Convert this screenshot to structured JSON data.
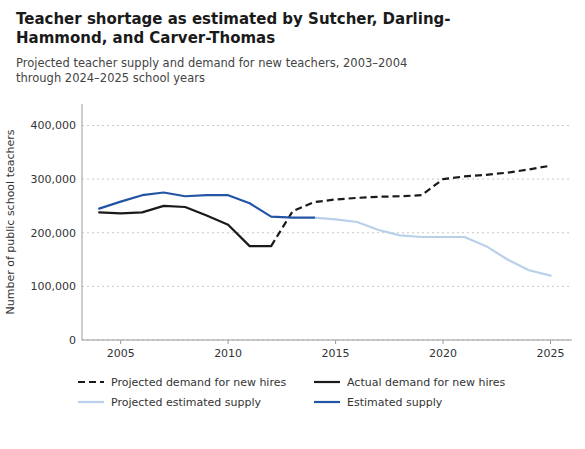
{
  "chart_data": {
    "type": "line",
    "title": "Teacher shortage as estimated by Sutcher, Darling-\nHammond, and Carver-Thomas",
    "subtitle": "Projected teacher supply and demand for new teachers, 2003–2004\nthrough 2024–2025 school years",
    "y_label": "Number of public school teachers",
    "xlim": [
      2003.2,
      2026.0
    ],
    "xticks": [
      2005,
      2010,
      2015,
      2020,
      2025
    ],
    "ylim": [
      0,
      440000
    ],
    "yticks": [
      0,
      {
        "value": 100000,
        "label": "100,000"
      },
      {
        "value": 200000,
        "label": "200,000"
      },
      {
        "value": 300000,
        "label": "300,000"
      },
      {
        "value": 400000,
        "label": "400,000"
      }
    ],
    "grid": true,
    "legend": "bottom",
    "series": [
      {
        "name": "Projected demand for new hires",
        "color": "#1a1a1a",
        "line_style": "dashed",
        "x": [
          2012,
          2013,
          2014,
          2015,
          2016,
          2017,
          2018,
          2019,
          2020,
          2021,
          2022,
          2023,
          2024,
          2025
        ],
        "values": [
          175000,
          240000,
          257000,
          262000,
          265000,
          267000,
          268000,
          270000,
          300000,
          305000,
          308000,
          312000,
          318000,
          325000
        ]
      },
      {
        "name": "Projected estimated supply",
        "color": "#b8d0ea",
        "line_style": "solid",
        "x": [
          2014,
          2015,
          2016,
          2017,
          2018,
          2019,
          2020,
          2021,
          2022,
          2023,
          2024,
          2025
        ],
        "values": [
          228000,
          225000,
          220000,
          205000,
          195000,
          192000,
          192000,
          192000,
          175000,
          150000,
          130000,
          120000
        ]
      },
      {
        "name": "Actual demand for new hires",
        "color": "#1a1a1a",
        "line_style": "solid",
        "x": [
          2004,
          2005,
          2006,
          2007,
          2008,
          2009,
          2010,
          2011,
          2012
        ],
        "values": [
          238000,
          236000,
          238000,
          250000,
          248000,
          232000,
          215000,
          175000,
          175000
        ]
      },
      {
        "name": "Estimated supply",
        "color": "#2255a4",
        "line_style": "solid",
        "x": [
          2004,
          2005,
          2006,
          2007,
          2008,
          2009,
          2010,
          2011,
          2012,
          2013,
          2014
        ],
        "values": [
          245000,
          258000,
          270000,
          275000,
          268000,
          270000,
          270000,
          255000,
          230000,
          228000,
          228000
        ]
      }
    ]
  }
}
